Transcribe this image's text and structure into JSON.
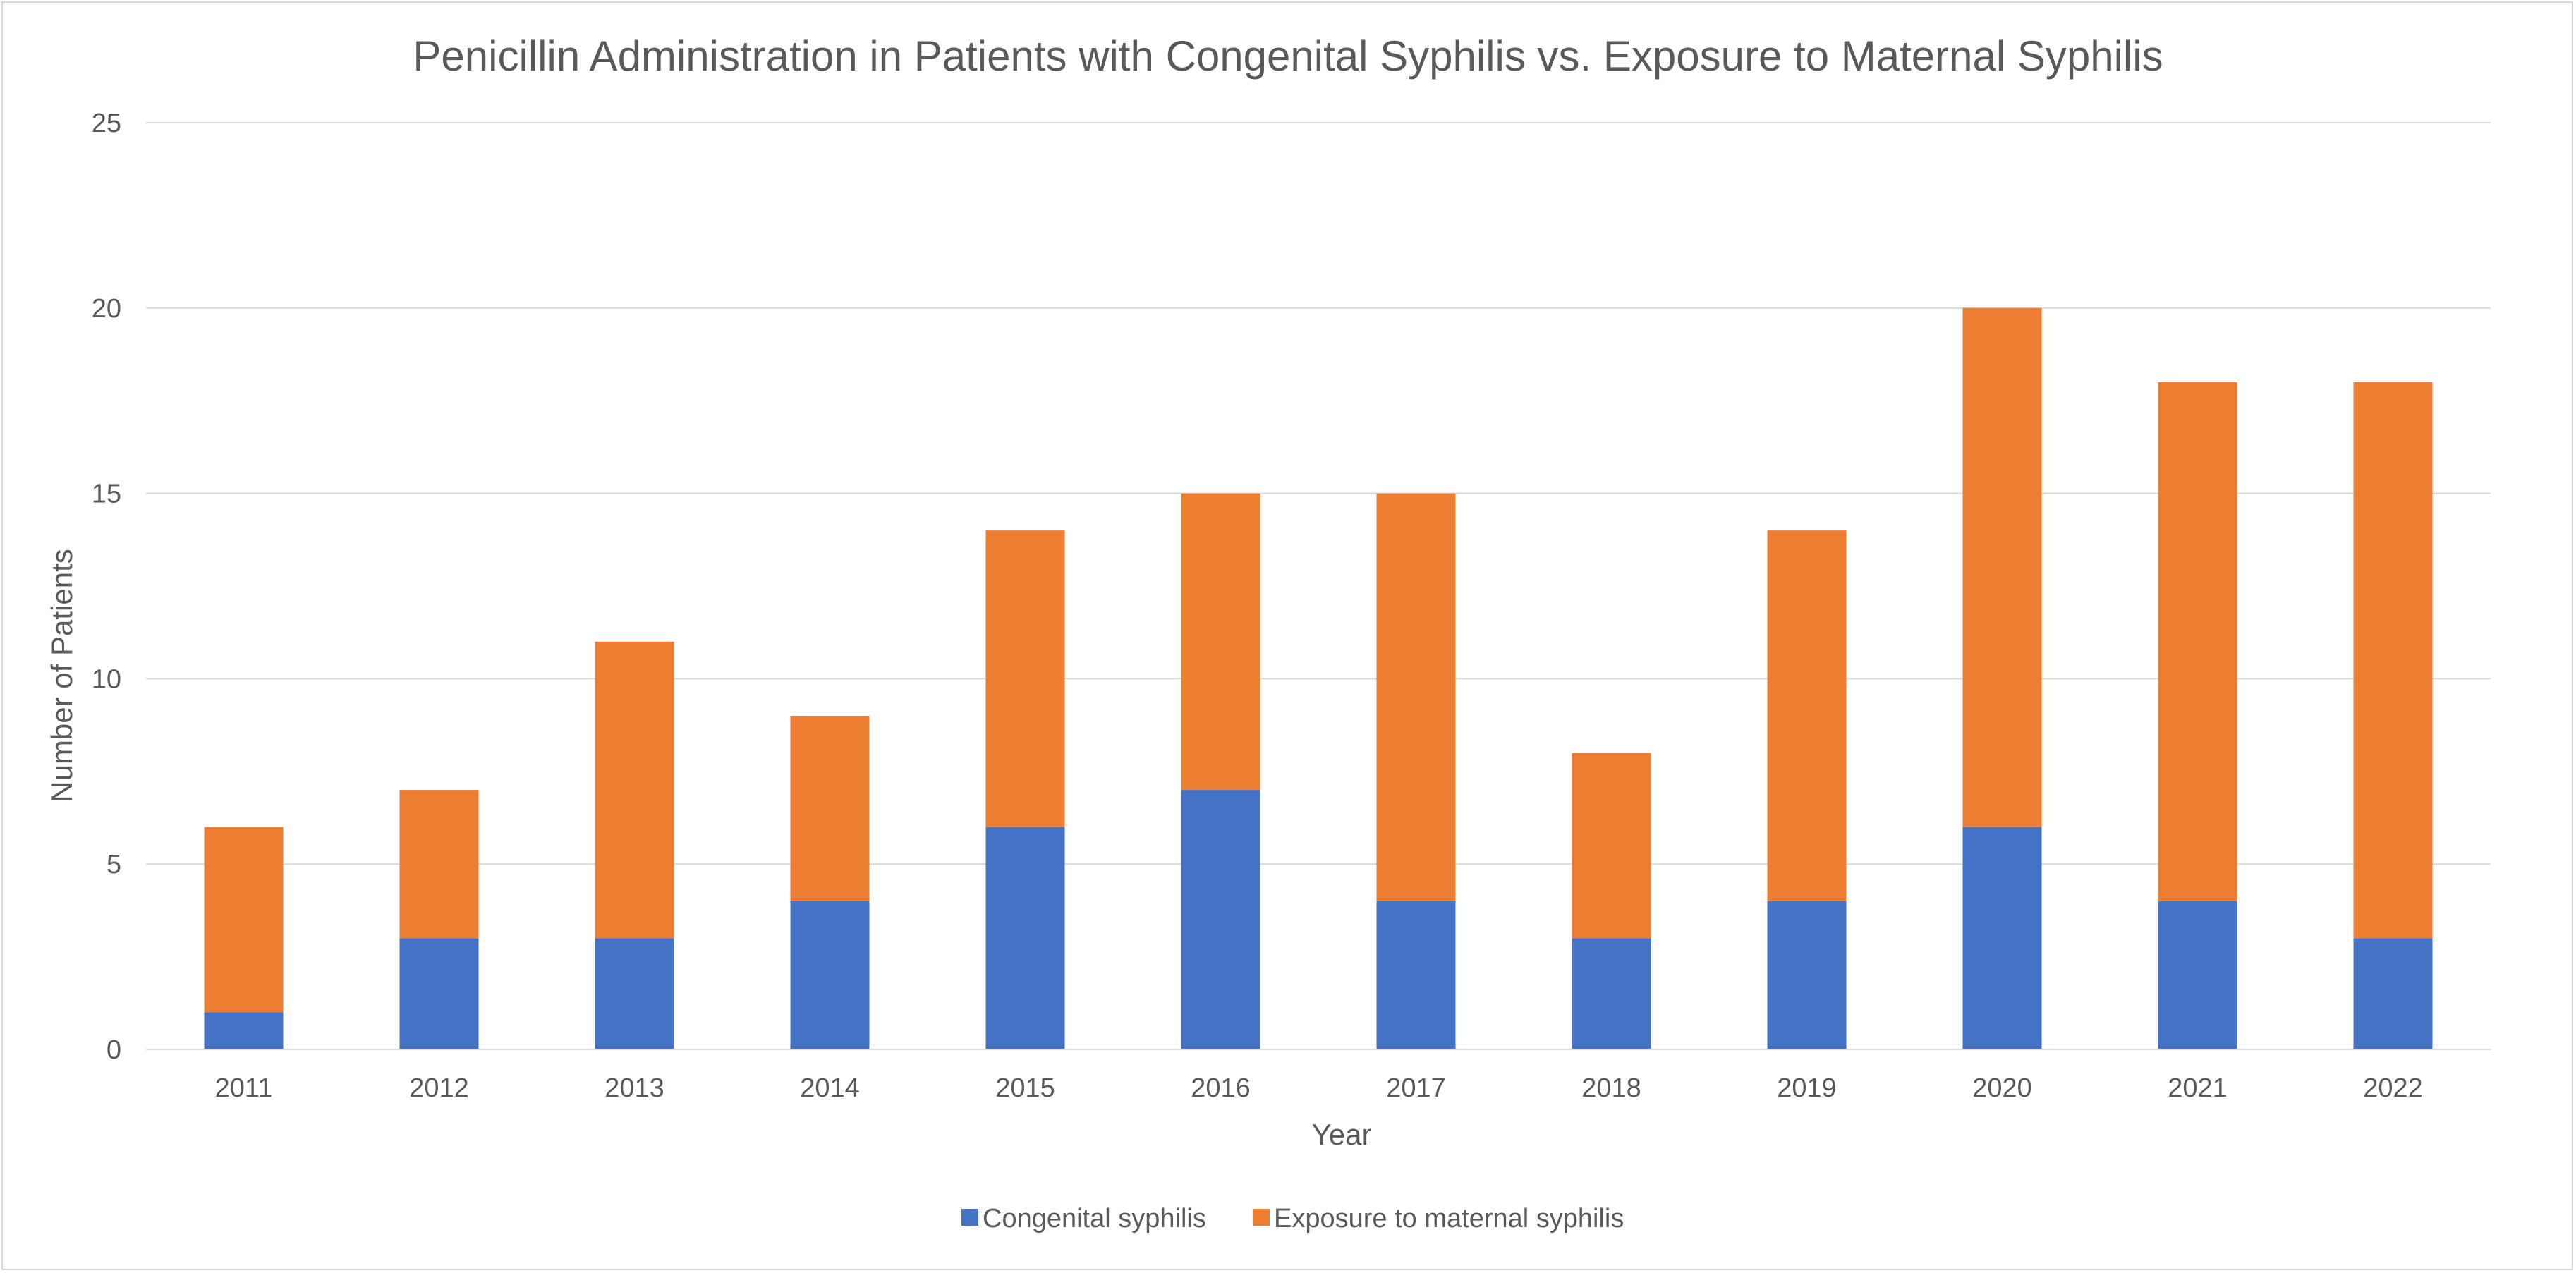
{
  "chart_data": {
    "type": "bar",
    "stacked": true,
    "title": "Penicillin Administration in Patients with Congenital Syphilis vs. Exposure to Maternal Syphilis",
    "xlabel": "Year",
    "ylabel": "Number of Patients",
    "categories": [
      "2011",
      "2012",
      "2013",
      "2014",
      "2015",
      "2016",
      "2017",
      "2018",
      "2019",
      "2020",
      "2021",
      "2022"
    ],
    "series": [
      {
        "name": "Congenital syphilis",
        "color": "#4472C4",
        "values": [
          1,
          3,
          3,
          4,
          6,
          7,
          4,
          3,
          4,
          6,
          4,
          3
        ]
      },
      {
        "name": "Exposure to maternal syphilis",
        "color": "#ED7D31",
        "values": [
          5,
          4,
          8,
          5,
          8,
          8,
          11,
          5,
          10,
          14,
          14,
          15
        ]
      }
    ],
    "ylim": [
      0,
      25
    ],
    "yticks": [
      "0",
      "5",
      "10",
      "15",
      "20",
      "25"
    ],
    "grid": true,
    "legend": "bottom"
  }
}
